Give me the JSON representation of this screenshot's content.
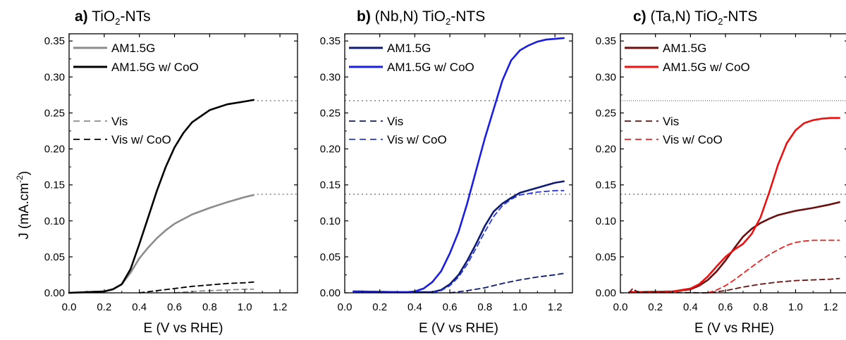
{
  "chart_data": [
    {
      "type": "line",
      "panel_letter": "a)",
      "title_pre": "TiO",
      "title_sub": "2",
      "title_post": "-NTs",
      "xlabel": "E (V vs RHE)",
      "ylabel_pre": "J (mA.cm",
      "ylabel_sup": "-2",
      "ylabel_post": ")",
      "xlim": [
        0.0,
        1.3
      ],
      "ylim": [
        0.0,
        0.36
      ],
      "xticks": [
        "0.0",
        "0.2",
        "0.4",
        "0.6",
        "0.8",
        "1.0",
        "1.2"
      ],
      "yticks": [
        "0.00",
        "0.05",
        "0.10",
        "0.15",
        "0.20",
        "0.25",
        "0.30",
        "0.35"
      ],
      "legend_top": [
        "AM1.5G",
        "AM1.5G w/ CoO"
      ],
      "legend_bottom": [
        "Vis",
        "Vis w/ CoO"
      ],
      "reference_lines": [
        0.267,
        0.137
      ],
      "series": [
        {
          "name": "AM1.5G",
          "color": "#8c8c8c",
          "dash": "solid",
          "x": [
            0.0,
            0.2,
            0.25,
            0.3,
            0.35,
            0.4,
            0.45,
            0.5,
            0.55,
            0.6,
            0.7,
            0.8,
            0.9,
            1.0,
            1.05
          ],
          "y": [
            0.0,
            0.002,
            0.005,
            0.012,
            0.028,
            0.048,
            0.063,
            0.076,
            0.087,
            0.096,
            0.109,
            0.118,
            0.126,
            0.133,
            0.136
          ]
        },
        {
          "name": "AM1.5G w/ CoO",
          "color": "#000000",
          "dash": "solid",
          "x": [
            0.0,
            0.2,
            0.25,
            0.3,
            0.35,
            0.4,
            0.45,
            0.5,
            0.55,
            0.6,
            0.65,
            0.7,
            0.8,
            0.9,
            1.0,
            1.05
          ],
          "y": [
            0.0,
            0.002,
            0.005,
            0.012,
            0.033,
            0.068,
            0.105,
            0.142,
            0.175,
            0.202,
            0.222,
            0.237,
            0.254,
            0.262,
            0.266,
            0.268
          ]
        },
        {
          "name": "Vis",
          "color": "#8c8c8c",
          "dash": "dashed",
          "x": [
            0.6,
            0.7,
            0.8,
            0.9,
            1.0,
            1.05
          ],
          "y": [
            0.0,
            0.002,
            0.003,
            0.004,
            0.005,
            0.005
          ]
        },
        {
          "name": "Vis w/ CoO",
          "color": "#000000",
          "dash": "dashed",
          "x": [
            0.4,
            0.5,
            0.6,
            0.7,
            0.8,
            0.9,
            1.0,
            1.05
          ],
          "y": [
            0.0,
            0.003,
            0.006,
            0.009,
            0.011,
            0.013,
            0.014,
            0.015
          ]
        }
      ]
    },
    {
      "type": "line",
      "panel_letter": "b)",
      "title_pre": "(Nb,N) TiO",
      "title_sub": "2",
      "title_post": "-NTS",
      "xlabel": "E (V vs RHE)",
      "xlim": [
        0.0,
        1.3
      ],
      "ylim": [
        0.0,
        0.36
      ],
      "xticks": [
        "0.0",
        "0.2",
        "0.4",
        "0.6",
        "0.8",
        "1.0",
        "1.2"
      ],
      "yticks": [
        "0.00",
        "0.05",
        "0.10",
        "0.15",
        "0.20",
        "0.25",
        "0.30",
        "0.35"
      ],
      "legend_top": [
        "AM1.5G",
        "AM1.5G w/ CoO"
      ],
      "legend_bottom": [
        "Vis",
        "Vis w/ CoO"
      ],
      "reference_lines": [
        0.267,
        0.137
      ],
      "series": [
        {
          "name": "AM1.5G",
          "color": "#101c73",
          "dash": "solid",
          "x": [
            0.05,
            0.3,
            0.5,
            0.55,
            0.6,
            0.65,
            0.7,
            0.75,
            0.8,
            0.85,
            0.9,
            0.95,
            1.0,
            1.1,
            1.2,
            1.25
          ],
          "y": [
            0.002,
            0.001,
            0.001,
            0.004,
            0.012,
            0.025,
            0.045,
            0.068,
            0.093,
            0.113,
            0.124,
            0.132,
            0.139,
            0.146,
            0.153,
            0.155
          ]
        },
        {
          "name": "AM1.5G w/ CoO",
          "color": "#1a1ee0",
          "dash": "solid",
          "x": [
            0.05,
            0.35,
            0.4,
            0.45,
            0.5,
            0.55,
            0.6,
            0.65,
            0.7,
            0.75,
            0.8,
            0.85,
            0.9,
            0.95,
            1.0,
            1.05,
            1.1,
            1.15,
            1.2,
            1.25
          ],
          "y": [
            0.002,
            0.001,
            0.002,
            0.006,
            0.015,
            0.03,
            0.055,
            0.085,
            0.125,
            0.17,
            0.215,
            0.255,
            0.295,
            0.323,
            0.337,
            0.344,
            0.349,
            0.352,
            0.353,
            0.354
          ]
        },
        {
          "name": "Vis",
          "color": "#101c73",
          "dash": "dashed",
          "x": [
            0.6,
            0.7,
            0.8,
            0.9,
            1.0,
            1.1,
            1.2,
            1.25
          ],
          "y": [
            0.0,
            0.003,
            0.007,
            0.013,
            0.018,
            0.022,
            0.025,
            0.027
          ]
        },
        {
          "name": "Vis w/ CoO",
          "color": "#2a3ad8",
          "dash": "dashed",
          "x": [
            0.5,
            0.55,
            0.6,
            0.65,
            0.7,
            0.75,
            0.8,
            0.85,
            0.9,
            0.95,
            1.0,
            1.1,
            1.2,
            1.25
          ],
          "y": [
            0.0,
            0.003,
            0.01,
            0.022,
            0.04,
            0.062,
            0.085,
            0.106,
            0.121,
            0.13,
            0.136,
            0.14,
            0.142,
            0.142
          ]
        }
      ]
    },
    {
      "type": "line",
      "panel_letter": "c)",
      "title_pre": "(Ta,N) TiO",
      "title_sub": "2",
      "title_post": "-NTS",
      "xlabel": "E (V vs RHE)",
      "xlim": [
        0.0,
        1.3
      ],
      "ylim": [
        0.0,
        0.36
      ],
      "xticks": [
        "0.0",
        "0.2",
        "0.4",
        "0.6",
        "0.8",
        "1.0",
        "1.2"
      ],
      "yticks": [
        "0.00",
        "0.05",
        "0.10",
        "0.15",
        "0.20",
        "0.25",
        "0.30",
        "0.35"
      ],
      "legend_top": [
        "AM1.5G",
        "AM1.5G w/ CoO"
      ],
      "legend_bottom": [
        "Vis",
        "Vis w/ CoO"
      ],
      "reference_lines": [
        0.267,
        0.137
      ],
      "series": [
        {
          "name": "AM1.5G",
          "color": "#6b0f0f",
          "dash": "solid",
          "x": [
            0.05,
            0.3,
            0.4,
            0.45,
            0.5,
            0.55,
            0.6,
            0.65,
            0.7,
            0.75,
            0.8,
            0.85,
            0.9,
            0.95,
            1.0,
            1.1,
            1.2,
            1.25
          ],
          "y": [
            0.001,
            0.002,
            0.005,
            0.01,
            0.018,
            0.03,
            0.045,
            0.062,
            0.078,
            0.089,
            0.097,
            0.103,
            0.108,
            0.111,
            0.114,
            0.118,
            0.123,
            0.126
          ]
        },
        {
          "name": "AM1.5G w/ CoO",
          "color": "#ee1111",
          "dash": "solid",
          "x": [
            0.05,
            0.3,
            0.4,
            0.45,
            0.5,
            0.55,
            0.6,
            0.65,
            0.7,
            0.75,
            0.8,
            0.85,
            0.9,
            0.95,
            1.0,
            1.05,
            1.1,
            1.15,
            1.2,
            1.25
          ],
          "y": [
            0.001,
            0.002,
            0.006,
            0.012,
            0.023,
            0.037,
            0.05,
            0.06,
            0.068,
            0.082,
            0.105,
            0.14,
            0.178,
            0.208,
            0.226,
            0.236,
            0.24,
            0.242,
            0.243,
            0.243
          ]
        },
        {
          "name": "Vis",
          "color": "#6b0f0f",
          "dash": "dashed",
          "x": [
            0.05,
            0.07,
            0.1,
            0.5,
            0.6,
            0.7,
            0.8,
            0.9,
            1.0,
            1.1,
            1.2,
            1.25
          ],
          "y": [
            0.0,
            0.006,
            0.001,
            0.0,
            0.003,
            0.008,
            0.012,
            0.015,
            0.017,
            0.018,
            0.019,
            0.02
          ]
        },
        {
          "name": "Vis w/ CoO",
          "color": "#ee2222",
          "dash": "dashed",
          "x": [
            0.5,
            0.55,
            0.6,
            0.65,
            0.7,
            0.75,
            0.8,
            0.85,
            0.9,
            0.95,
            1.0,
            1.05,
            1.1,
            1.15,
            1.2,
            1.25
          ],
          "y": [
            0.0,
            0.004,
            0.01,
            0.018,
            0.027,
            0.036,
            0.045,
            0.053,
            0.06,
            0.066,
            0.07,
            0.072,
            0.073,
            0.073,
            0.073,
            0.073
          ]
        }
      ]
    }
  ]
}
